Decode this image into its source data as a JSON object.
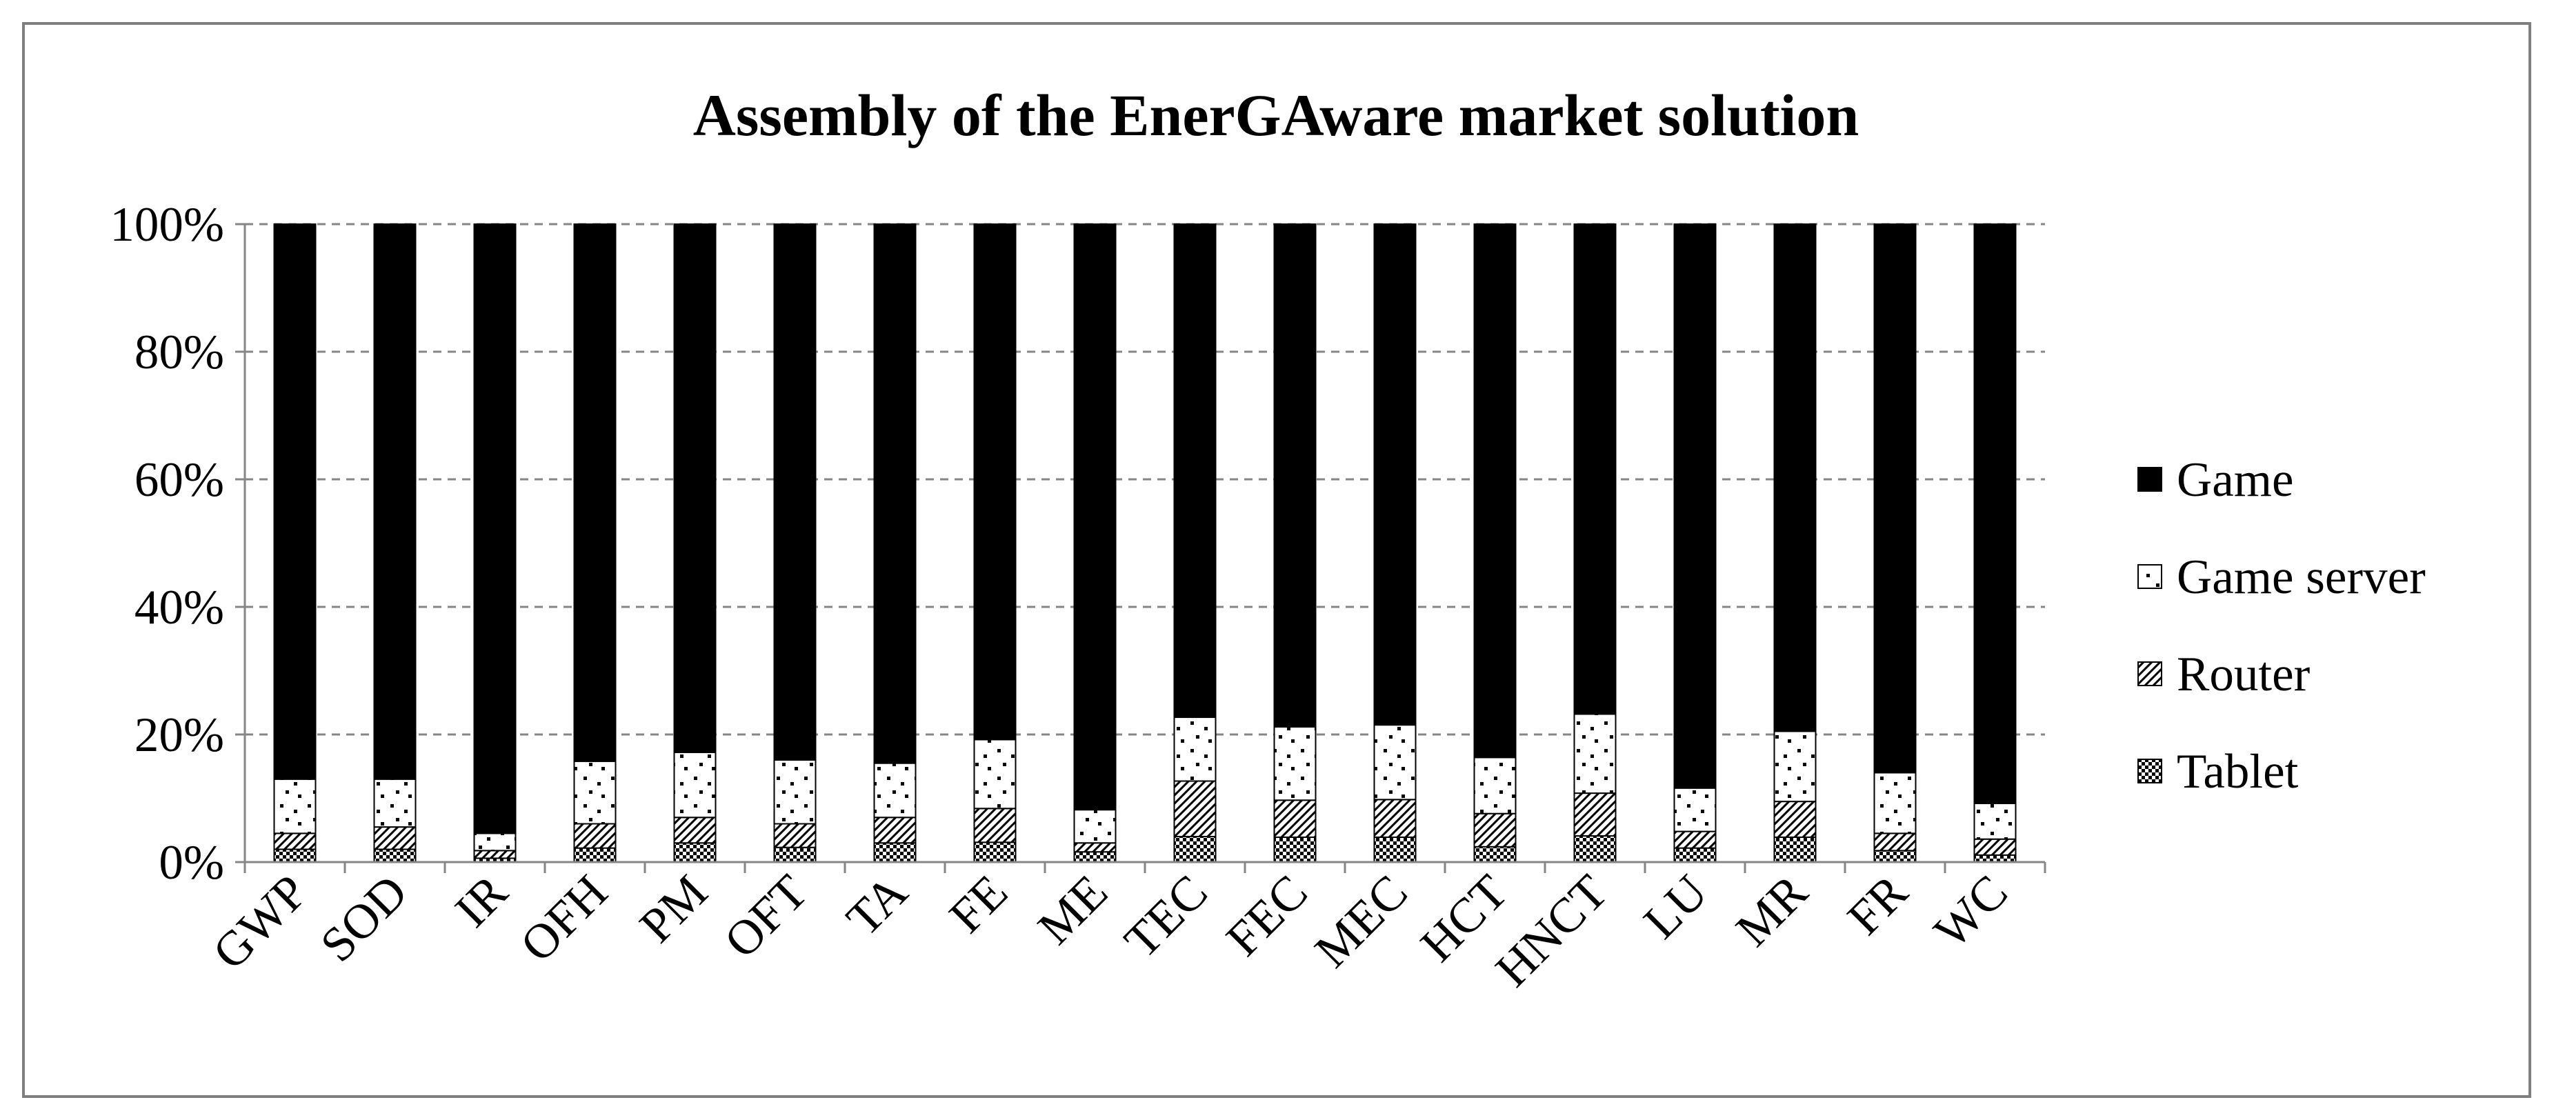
{
  "chart_data": {
    "type": "bar",
    "stacked": "percent",
    "title": "Assembly of the EnerGAware market solution",
    "xlabel": "",
    "ylabel": "",
    "ylim": [
      0,
      100
    ],
    "y_ticks": [
      "0%",
      "20%",
      "40%",
      "60%",
      "80%",
      "100%"
    ],
    "grid": "horizontal dashed",
    "legend_position": "right",
    "categories": [
      "GWP",
      "SOD",
      "IR",
      "OFH",
      "PM",
      "OFT",
      "TA",
      "FE",
      "ME",
      "TEC",
      "FEC",
      "MEC",
      "HCT",
      "HNCT",
      "LU",
      "MR",
      "FR",
      "WC"
    ],
    "series": [
      {
        "name": "Tablet",
        "pattern": "checker",
        "values": [
          2.0,
          2.0,
          0.6,
          2.2,
          3.0,
          2.3,
          3.0,
          3.1,
          1.6,
          4.0,
          3.9,
          3.9,
          2.4,
          4.1,
          2.2,
          3.9,
          1.8,
          1.1
        ]
      },
      {
        "name": "Router",
        "pattern": "diagonal",
        "values": [
          2.5,
          3.5,
          1.2,
          3.8,
          4.0,
          3.7,
          4.0,
          5.3,
          1.4,
          8.7,
          5.8,
          5.9,
          5.2,
          6.7,
          2.6,
          5.6,
          2.7,
          2.5
        ]
      },
      {
        "name": "Game server",
        "pattern": "dots",
        "values": [
          8.5,
          7.5,
          2.7,
          9.8,
          10.2,
          10.0,
          8.5,
          10.8,
          5.2,
          10.0,
          11.5,
          11.7,
          8.8,
          12.4,
          6.8,
          11.0,
          9.5,
          5.6
        ]
      },
      {
        "name": "Game",
        "pattern": "solid",
        "values": [
          87.0,
          87.0,
          95.5,
          84.2,
          82.8,
          84.0,
          84.5,
          80.8,
          91.8,
          77.3,
          78.8,
          78.5,
          83.6,
          76.8,
          88.4,
          79.5,
          86.0,
          90.8
        ]
      }
    ],
    "legend_order": [
      "Game",
      "Game server",
      "Router",
      "Tablet"
    ],
    "colors": {
      "game": "#000000",
      "frame": "#7f7f7f",
      "grid": "#868686",
      "axis": "#868686"
    }
  }
}
